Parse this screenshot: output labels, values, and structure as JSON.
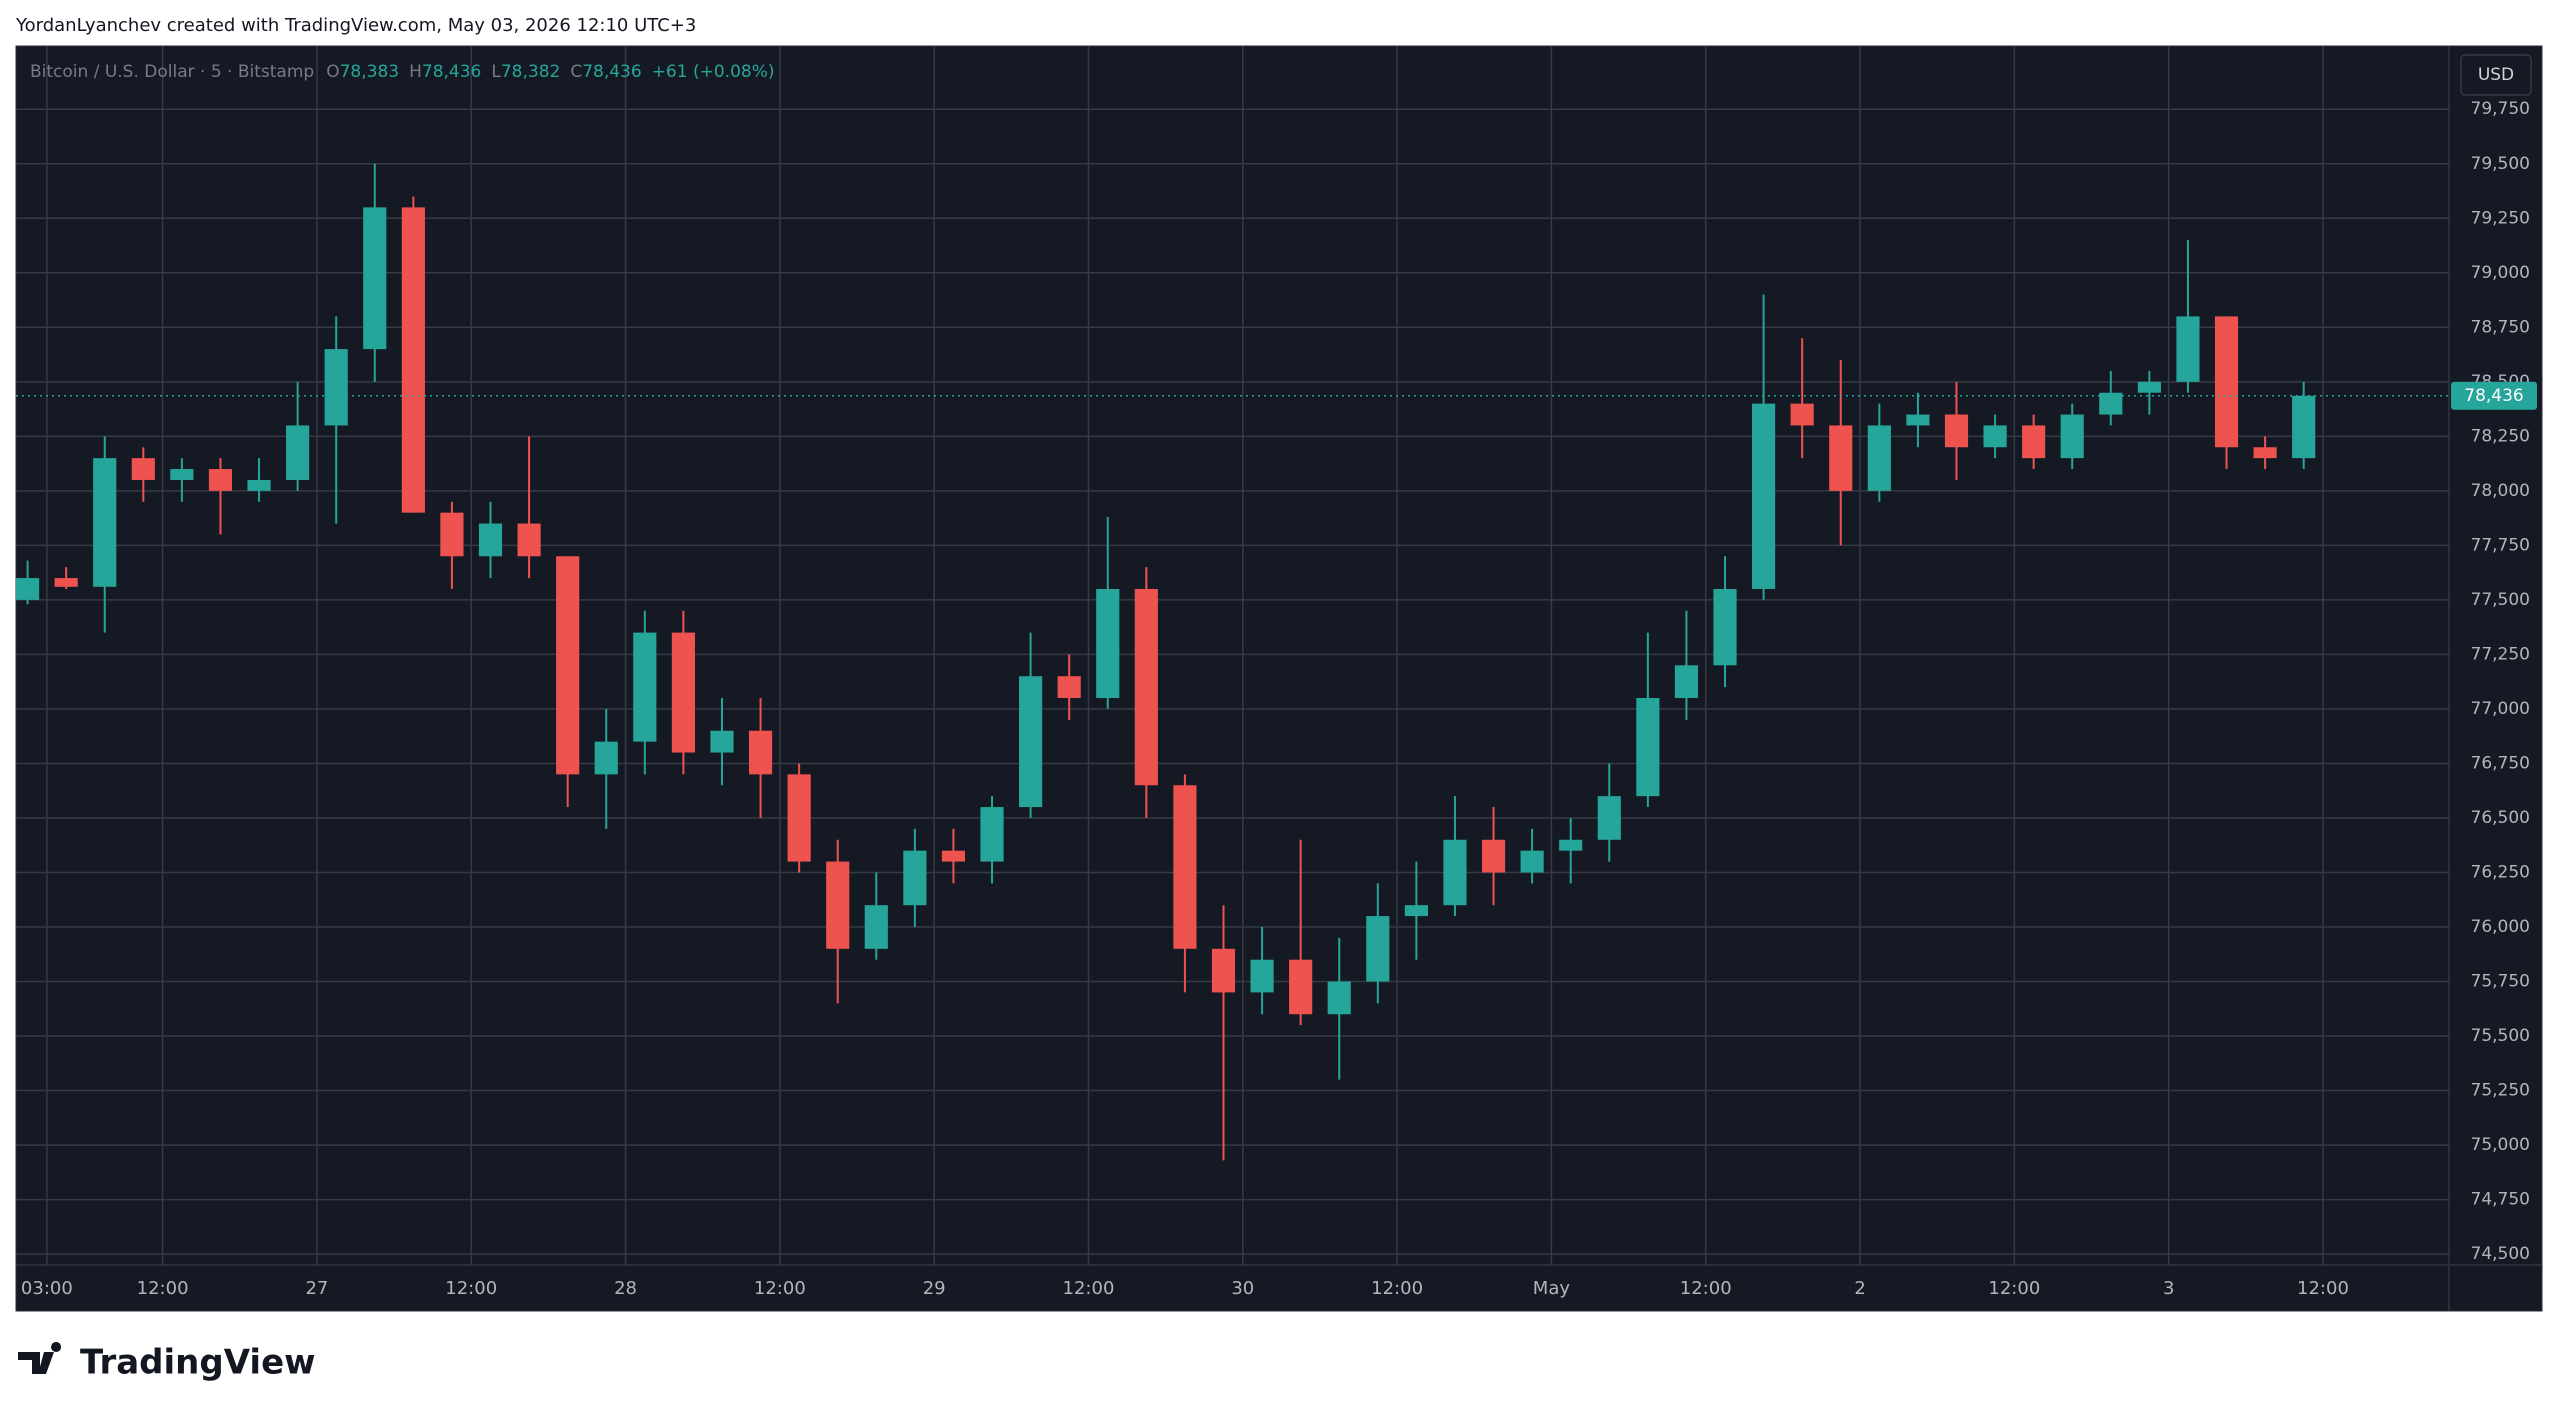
{
  "header": {
    "text": "YordanLyanchev created with TradingView.com, May 03, 2026 12:10 UTC+3"
  },
  "footer": {
    "logo": "TradingView"
  },
  "chart_data": {
    "type": "candlestick",
    "symbol": "Bitcoin / U.S. Dollar · 5 · Bitstamp",
    "ohlc_legend": [
      {
        "label": "O",
        "value": "78,383"
      },
      {
        "label": "H",
        "value": "78,436"
      },
      {
        "label": "L",
        "value": "78,382"
      },
      {
        "label": "C",
        "value": "78,436"
      }
    ],
    "change": "+61 (+0.08%)",
    "currency": "USD",
    "last_price": {
      "value": 78436,
      "label": "78,436"
    },
    "up_color": "#26a69a",
    "down_color": "#ef5350",
    "grid": true,
    "xlim": [
      0.6,
      189.8
    ],
    "xticks": [
      {
        "value": 3,
        "label": "03:00"
      },
      {
        "value": 12,
        "label": "12:00"
      },
      {
        "value": 24,
        "label": "27"
      },
      {
        "value": 36,
        "label": "12:00"
      },
      {
        "value": 48,
        "label": "28"
      },
      {
        "value": 60,
        "label": "12:00"
      },
      {
        "value": 72,
        "label": "29"
      },
      {
        "value": 84,
        "label": "12:00"
      },
      {
        "value": 96,
        "label": "30"
      },
      {
        "value": 108,
        "label": "12:00"
      },
      {
        "value": 120,
        "label": "May"
      },
      {
        "value": 132,
        "label": "12:00"
      },
      {
        "value": 144,
        "label": "2"
      },
      {
        "value": 156,
        "label": "12:00"
      },
      {
        "value": 168,
        "label": "3"
      },
      {
        "value": 180,
        "label": "12:00"
      }
    ],
    "ylim": [
      74450,
      80040
    ],
    "yticks": [
      {
        "value": 74500,
        "label": "74,500"
      },
      {
        "value": 74750,
        "label": "74,750"
      },
      {
        "value": 75000,
        "label": "75,000"
      },
      {
        "value": 75250,
        "label": "75,250"
      },
      {
        "value": 75500,
        "label": "75,500"
      },
      {
        "value": 75750,
        "label": "75,750"
      },
      {
        "value": 76000,
        "label": "76,000"
      },
      {
        "value": 76250,
        "label": "76,250"
      },
      {
        "value": 76500,
        "label": "76,500"
      },
      {
        "value": 76750,
        "label": "76,750"
      },
      {
        "value": 77000,
        "label": "77,000"
      },
      {
        "value": 77250,
        "label": "77,250"
      },
      {
        "value": 77500,
        "label": "77,500"
      },
      {
        "value": 77750,
        "label": "77,750"
      },
      {
        "value": 78000,
        "label": "78,000"
      },
      {
        "value": 78250,
        "label": "78,250"
      },
      {
        "value": 78500,
        "label": "78,500"
      },
      {
        "value": 78750,
        "label": "78,750"
      },
      {
        "value": 79000,
        "label": "79,000"
      },
      {
        "value": 79250,
        "label": "79,250"
      },
      {
        "value": 79500,
        "label": "79,500"
      },
      {
        "value": 79750,
        "label": "79,750"
      }
    ],
    "x": [
      1.5,
      4.5,
      7.5,
      10.5,
      13.5,
      16.5,
      19.5,
      22.5,
      25.5,
      28.5,
      31.5,
      34.5,
      37.5,
      40.5,
      43.5,
      46.5,
      49.5,
      52.5,
      55.5,
      58.5,
      61.5,
      64.5,
      67.5,
      70.5,
      73.5,
      76.5,
      79.5,
      82.5,
      85.5,
      88.5,
      91.5,
      94.5,
      97.5,
      100.5,
      103.5,
      106.5,
      109.5,
      112.5,
      115.5,
      118.5,
      121.5,
      124.5,
      127.5,
      130.5,
      133.5,
      136.5,
      139.5,
      142.5,
      145.5,
      148.5,
      151.5,
      154.5,
      157.5,
      160.5,
      163.5,
      166.5,
      169.5,
      172.5,
      175.5,
      178.5
    ],
    "open": [
      77500,
      77600,
      77560,
      78150,
      78050,
      78100,
      78000,
      78050,
      78300,
      78650,
      79300,
      77900,
      77700,
      77850,
      77700,
      76700,
      76850,
      77350,
      76800,
      76900,
      76700,
      76300,
      75900,
      76100,
      76350,
      76300,
      76550,
      77150,
      77050,
      77550,
      76650,
      75900,
      75700,
      75850,
      75600,
      75750,
      76050,
      76100,
      76400,
      76250,
      76350,
      76400,
      76600,
      77050,
      77200,
      77550,
      78400,
      78300,
      78000,
      78300,
      78350,
      78200,
      78300,
      78150,
      78350,
      78450,
      78500,
      78800,
      78200,
      78150
    ],
    "high": [
      77680,
      77650,
      78250,
      78200,
      78150,
      78150,
      78150,
      78500,
      78800,
      79500,
      79350,
      77950,
      77950,
      78250,
      77700,
      77000,
      77450,
      77450,
      77050,
      77050,
      76750,
      76400,
      76250,
      76450,
      76450,
      76600,
      77350,
      77250,
      77880,
      77650,
      76700,
      76100,
      76000,
      76400,
      75950,
      76200,
      76300,
      76600,
      76550,
      76450,
      76500,
      76750,
      77350,
      77450,
      77700,
      78900,
      78700,
      78600,
      78400,
      78450,
      78500,
      78350,
      78350,
      78400,
      78550,
      78550,
      79150,
      78800,
      78250,
      78500
    ],
    "low": [
      77480,
      77550,
      77350,
      77950,
      77950,
      77800,
      77950,
      78000,
      77850,
      78500,
      77900,
      77550,
      77600,
      77600,
      76550,
      76450,
      76700,
      76700,
      76650,
      76500,
      76250,
      75650,
      75850,
      76000,
      76200,
      76200,
      76500,
      76950,
      77000,
      76500,
      75700,
      74930,
      75600,
      75550,
      75300,
      75650,
      75850,
      76050,
      76100,
      76200,
      76200,
      76300,
      76550,
      76950,
      77100,
      77500,
      78150,
      77750,
      77950,
      78200,
      78050,
      78150,
      78100,
      78100,
      78300,
      78350,
      78450,
      78100,
      78100,
      78100
    ],
    "close": [
      77600,
      77560,
      78150,
      78050,
      78100,
      78000,
      78050,
      78300,
      78650,
      79300,
      77900,
      77700,
      77850,
      77700,
      76700,
      76850,
      77350,
      76800,
      76900,
      76700,
      76300,
      75900,
      76100,
      76350,
      76300,
      76550,
      77150,
      77050,
      77550,
      76650,
      75900,
      75700,
      75850,
      75600,
      75750,
      76050,
      76100,
      76400,
      76250,
      76350,
      76400,
      76600,
      77050,
      77200,
      77550,
      78400,
      78300,
      78000,
      78300,
      78350,
      78200,
      78300,
      78150,
      78350,
      78450,
      78500,
      78800,
      78200,
      78150,
      78436
    ]
  }
}
